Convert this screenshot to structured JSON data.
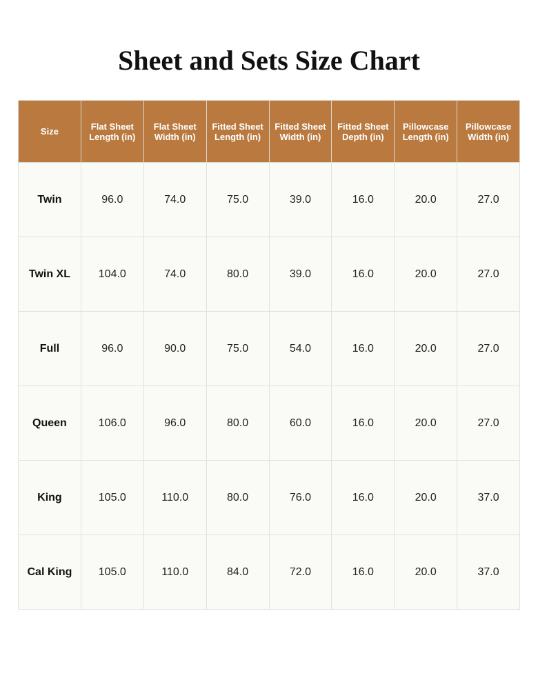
{
  "title": "Sheet and Sets Size Chart",
  "table": {
    "header": [
      "Size",
      "Flat Sheet Length (in)",
      "Flat Sheet Width (in)",
      "Fitted Sheet Length (in)",
      "Fitted Sheet Width (in)",
      "Fitted Sheet Depth (in)",
      "Pillowcase Length (in)",
      "Pillowcase Width (in)"
    ],
    "rows": [
      [
        "Twin",
        "96.0",
        "74.0",
        "75.0",
        "39.0",
        "16.0",
        "20.0",
        "27.0"
      ],
      [
        "Twin XL",
        "104.0",
        "74.0",
        "80.0",
        "39.0",
        "16.0",
        "20.0",
        "27.0"
      ],
      [
        "Full",
        "96.0",
        "90.0",
        "75.0",
        "54.0",
        "16.0",
        "20.0",
        "27.0"
      ],
      [
        "Queen",
        "106.0",
        "96.0",
        "80.0",
        "60.0",
        "16.0",
        "20.0",
        "27.0"
      ],
      [
        "King",
        "105.0",
        "110.0",
        "80.0",
        "76.0",
        "16.0",
        "20.0",
        "37.0"
      ],
      [
        "Cal King",
        "105.0",
        "110.0",
        "84.0",
        "72.0",
        "16.0",
        "20.0",
        "37.0"
      ]
    ]
  }
}
